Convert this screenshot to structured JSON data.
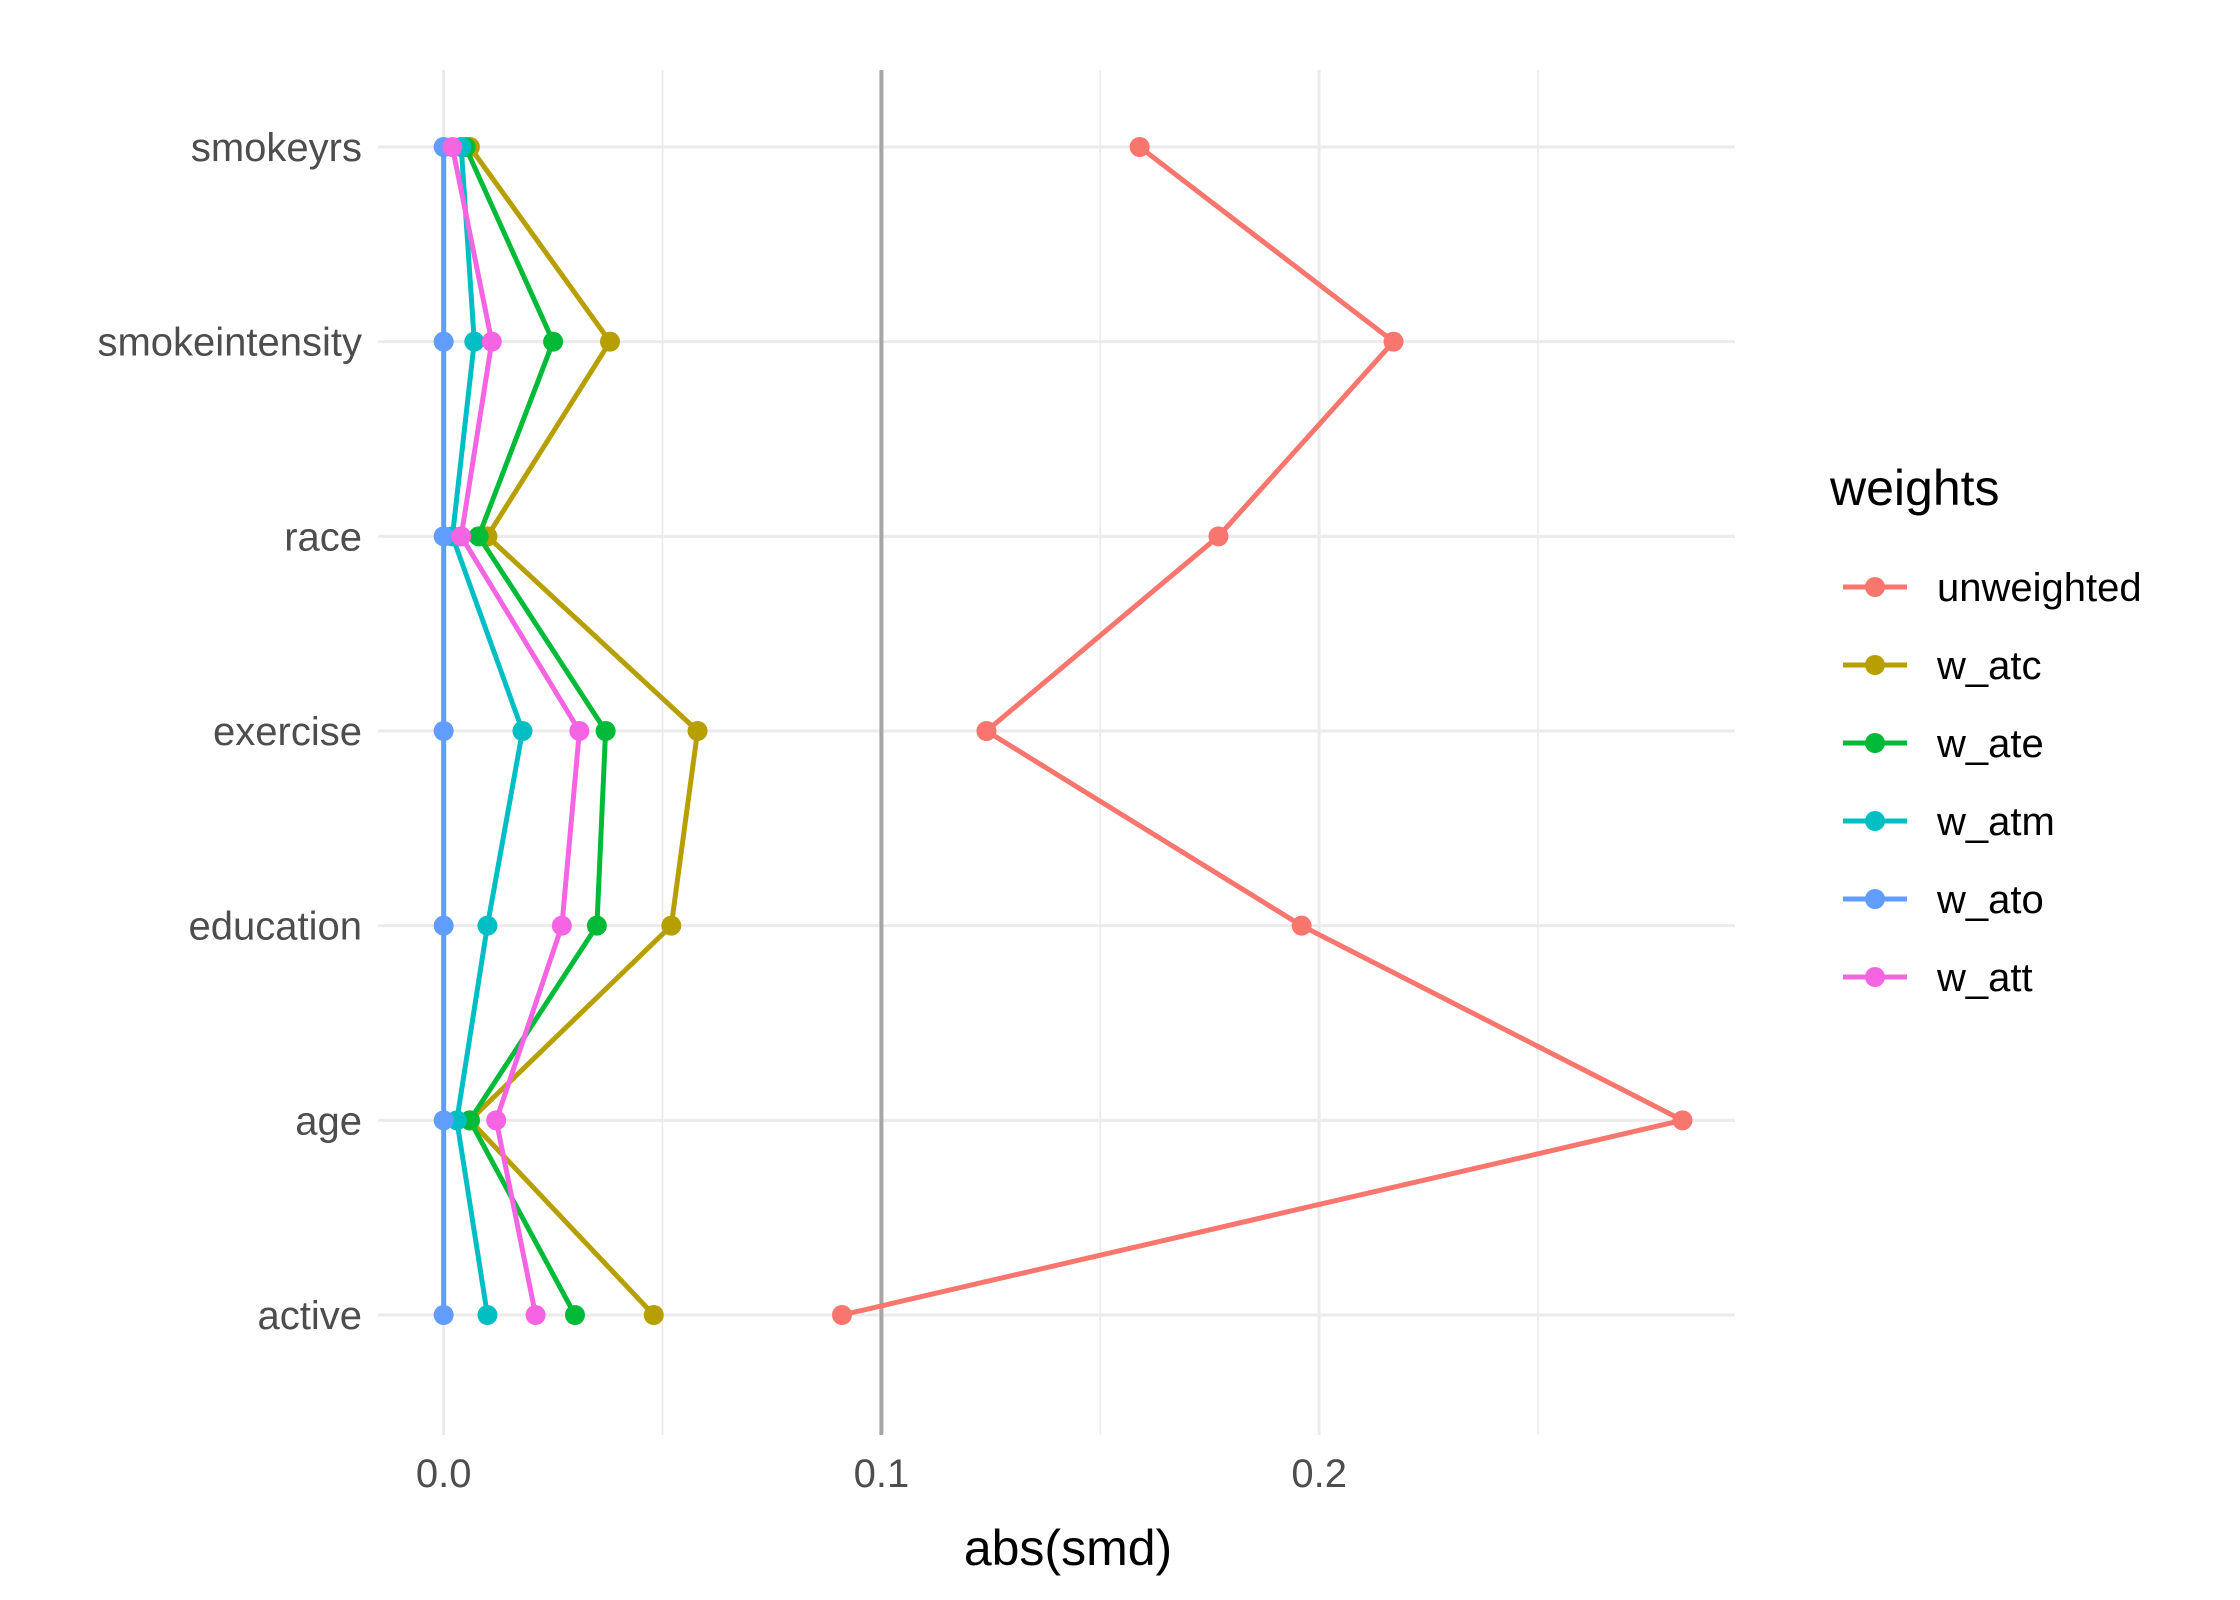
{
  "chart_data": {
    "type": "line",
    "orientation": "horizontal-dotplot",
    "xlabel": "abs(smd)",
    "ylabel": "",
    "xlim": [
      -0.015,
      0.295
    ],
    "x_ticks": [
      0.0,
      0.1,
      0.2
    ],
    "x_tick_labels": [
      "0.0",
      "0.1",
      "0.2"
    ],
    "reference_line": {
      "x": 0.1,
      "color": "#a6a6a6"
    },
    "categories": [
      "active",
      "age",
      "education",
      "exercise",
      "race",
      "smokeintensity",
      "smokeyrs"
    ],
    "grid": true,
    "legend": {
      "title": "weights",
      "position": "right"
    },
    "series": [
      {
        "name": "unweighted",
        "color": "#F8766D",
        "values": [
          0.091,
          0.283,
          0.196,
          0.124,
          0.177,
          0.217,
          0.159
        ]
      },
      {
        "name": "w_atc",
        "color": "#B79F00",
        "values": [
          0.048,
          0.006,
          0.052,
          0.058,
          0.01,
          0.038,
          0.006
        ]
      },
      {
        "name": "w_ate",
        "color": "#00BA38",
        "values": [
          0.03,
          0.006,
          0.035,
          0.037,
          0.008,
          0.025,
          0.005
        ]
      },
      {
        "name": "w_atm",
        "color": "#00BFC4",
        "values": [
          0.01,
          0.003,
          0.01,
          0.018,
          0.002,
          0.007,
          0.004
        ]
      },
      {
        "name": "w_ato",
        "color": "#619CFF",
        "values": [
          0.0,
          0.0,
          0.0,
          0.0,
          0.0,
          0.0,
          0.0
        ]
      },
      {
        "name": "w_att",
        "color": "#F564E3",
        "values": [
          0.021,
          0.012,
          0.027,
          0.031,
          0.004,
          0.011,
          0.002
        ]
      }
    ]
  }
}
